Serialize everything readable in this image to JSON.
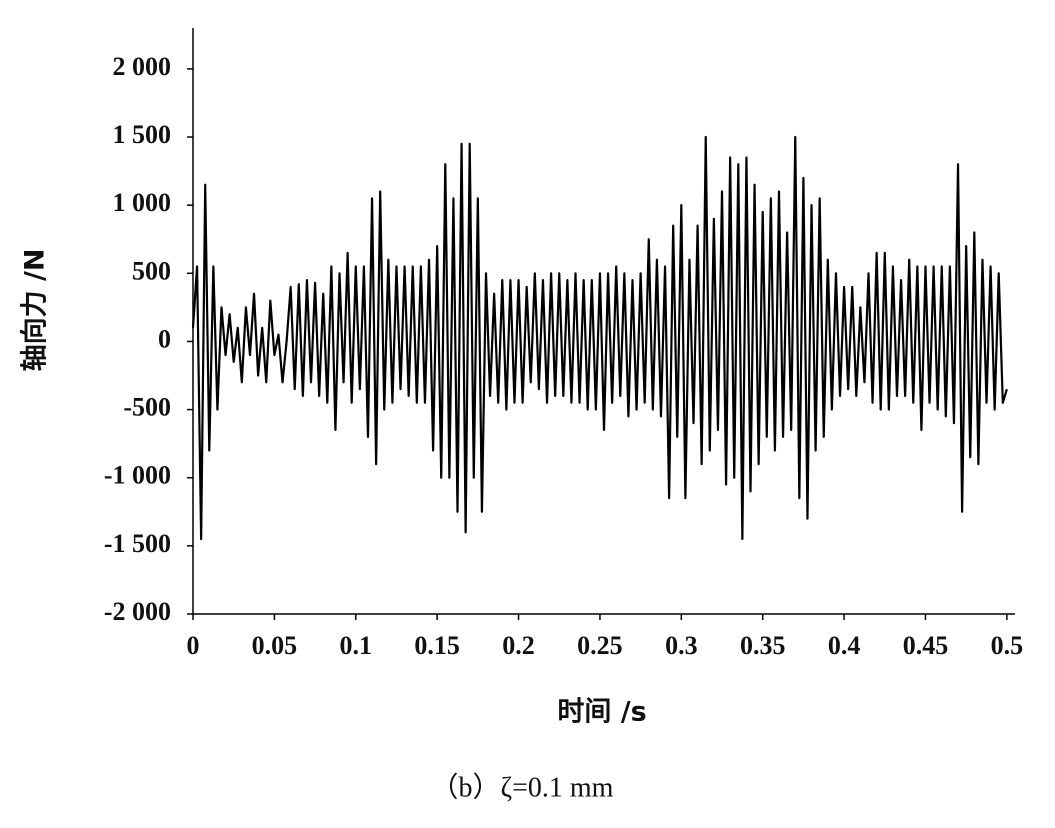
{
  "chart_data": {
    "type": "line",
    "y_label": "轴向力 /N",
    "x_label": "时间 /s",
    "caption": "（b）ζ=0.1 mm",
    "color": "#000000",
    "xlim": [
      0,
      0.505
    ],
    "ylim": [
      -2000,
      2300
    ],
    "xticks": [
      0,
      0.05,
      0.1,
      0.15,
      0.2,
      0.25,
      0.3,
      0.35,
      0.4,
      0.45,
      0.5
    ],
    "yticks": [
      {
        "value": -2000,
        "label": "-2 000"
      },
      {
        "value": -1500,
        "label": "-1 500"
      },
      {
        "value": -1000,
        "label": "-1 000"
      },
      -500,
      0,
      500,
      {
        "value": 1000,
        "label": "1 000"
      },
      {
        "value": 1500,
        "label": "1 500"
      },
      {
        "value": 2000,
        "label": "2 000"
      }
    ],
    "x": [
      0,
      0.0025,
      0.005,
      0.0075,
      0.01,
      0.0125,
      0.015,
      0.0175,
      0.02,
      0.0225,
      0.025,
      0.0275,
      0.03,
      0.0325,
      0.035,
      0.0375,
      0.04,
      0.0425,
      0.045,
      0.0475,
      0.05,
      0.0525,
      0.055,
      0.0575,
      0.06,
      0.0625,
      0.065,
      0.0675,
      0.07,
      0.0725,
      0.075,
      0.0775,
      0.08,
      0.0825,
      0.085,
      0.0875,
      0.09,
      0.0925,
      0.095,
      0.0975,
      0.1,
      0.1025,
      0.105,
      0.1075,
      0.11,
      0.1125,
      0.115,
      0.1175,
      0.12,
      0.1225,
      0.125,
      0.1275,
      0.13,
      0.1325,
      0.135,
      0.1375,
      0.14,
      0.1425,
      0.145,
      0.1475,
      0.15,
      0.1525,
      0.155,
      0.1575,
      0.16,
      0.1625,
      0.165,
      0.1675,
      0.17,
      0.1725,
      0.175,
      0.1775,
      0.18,
      0.1825,
      0.185,
      0.1875,
      0.19,
      0.1925,
      0.195,
      0.1975,
      0.2,
      0.2025,
      0.205,
      0.2075,
      0.21,
      0.2125,
      0.215,
      0.2175,
      0.22,
      0.2225,
      0.225,
      0.2275,
      0.23,
      0.2325,
      0.235,
      0.2375,
      0.24,
      0.2425,
      0.245,
      0.2475,
      0.25,
      0.2525,
      0.255,
      0.2575,
      0.26,
      0.2625,
      0.265,
      0.2675,
      0.27,
      0.2725,
      0.275,
      0.2775,
      0.28,
      0.2825,
      0.285,
      0.2875,
      0.29,
      0.2925,
      0.295,
      0.2975,
      0.3,
      0.3025,
      0.305,
      0.3075,
      0.31,
      0.3125,
      0.315,
      0.3175,
      0.32,
      0.3225,
      0.325,
      0.3275,
      0.33,
      0.3325,
      0.335,
      0.3375,
      0.34,
      0.3425,
      0.345,
      0.3475,
      0.35,
      0.3525,
      0.355,
      0.3575,
      0.36,
      0.3625,
      0.365,
      0.3675,
      0.37,
      0.3725,
      0.375,
      0.3775,
      0.38,
      0.3825,
      0.385,
      0.3875,
      0.39,
      0.3925,
      0.395,
      0.3975,
      0.4,
      0.4025,
      0.405,
      0.4075,
      0.41,
      0.4125,
      0.415,
      0.4175,
      0.42,
      0.4225,
      0.425,
      0.4275,
      0.43,
      0.4325,
      0.435,
      0.4375,
      0.44,
      0.4425,
      0.445,
      0.4475,
      0.45,
      0.4525,
      0.455,
      0.4575,
      0.46,
      0.4625,
      0.465,
      0.4675,
      0.47,
      0.4725,
      0.475,
      0.4775,
      0.48,
      0.4825,
      0.485,
      0.4875,
      0.49,
      0.4925,
      0.495,
      0.4975,
      0.5
    ],
    "values": [
      100,
      550,
      -1450,
      1150,
      -800,
      550,
      -500,
      250,
      -100,
      200,
      -150,
      100,
      -300,
      250,
      -100,
      350,
      -250,
      100,
      -300,
      300,
      -100,
      50,
      -300,
      0,
      400,
      -350,
      420,
      -400,
      450,
      -300,
      430,
      -400,
      350,
      -450,
      550,
      -650,
      500,
      -300,
      650,
      -450,
      550,
      -350,
      550,
      -700,
      1050,
      -900,
      1100,
      -500,
      600,
      -450,
      550,
      -350,
      550,
      -400,
      550,
      -450,
      550,
      -450,
      600,
      -800,
      700,
      -1000,
      1300,
      -1000,
      1050,
      -1250,
      1450,
      -1400,
      1450,
      -1000,
      1050,
      -1250,
      500,
      -400,
      350,
      -450,
      450,
      -500,
      450,
      -450,
      450,
      -450,
      400,
      -300,
      500,
      -350,
      450,
      -450,
      500,
      -400,
      500,
      -400,
      450,
      -450,
      500,
      -450,
      450,
      -500,
      450,
      -500,
      500,
      -650,
      500,
      -450,
      550,
      -400,
      500,
      -550,
      450,
      -500,
      500,
      -450,
      750,
      -500,
      600,
      -550,
      550,
      -1150,
      850,
      -700,
      1000,
      -1150,
      600,
      -600,
      850,
      -900,
      1500,
      -800,
      900,
      -650,
      1100,
      -1050,
      1350,
      -1000,
      1300,
      -1450,
      1350,
      -1100,
      1150,
      -900,
      950,
      -700,
      1050,
      -800,
      1100,
      -700,
      800,
      -650,
      1500,
      -1150,
      1200,
      -1300,
      1000,
      -800,
      1050,
      -700,
      600,
      -500,
      500,
      -400,
      400,
      -350,
      400,
      -400,
      250,
      -300,
      500,
      -450,
      650,
      -500,
      650,
      -500,
      550,
      -400,
      450,
      -400,
      600,
      -450,
      550,
      -650,
      550,
      -450,
      550,
      -500,
      550,
      -550,
      550,
      -600,
      1300,
      -1250,
      700,
      -850,
      800,
      -900,
      600,
      -450,
      550,
      -500,
      500,
      -450,
      -350
    ]
  }
}
